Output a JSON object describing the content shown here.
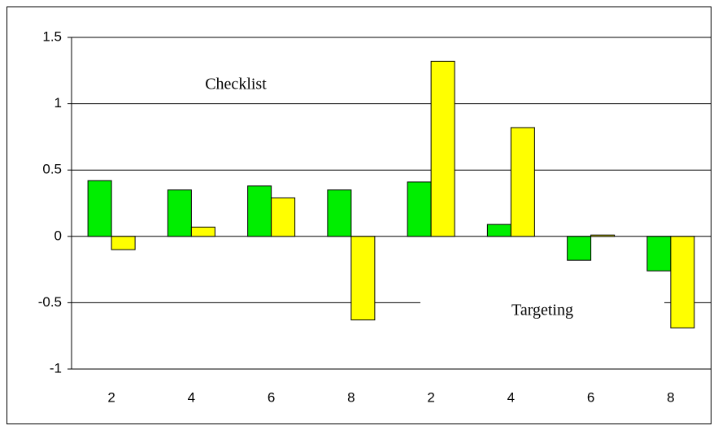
{
  "chart_data": {
    "type": "bar",
    "categories": [
      "2",
      "4",
      "6",
      "8",
      "2",
      "4",
      "6",
      "8"
    ],
    "series": [
      {
        "color": "#00ee00",
        "values": [
          0.42,
          0.35,
          0.38,
          0.35,
          0.41,
          0.09,
          -0.18,
          -0.26
        ]
      },
      {
        "color": "#ffff00",
        "values": [
          -0.1,
          0.07,
          0.29,
          -0.63,
          1.32,
          0.82,
          0.01,
          -0.69
        ]
      }
    ],
    "ylim": [
      -1,
      1.5
    ],
    "yticks": [
      -1,
      -0.5,
      0,
      0.5,
      1,
      1.5
    ],
    "grid": true,
    "annotations": [
      "Checklist",
      "Targeting"
    ]
  }
}
